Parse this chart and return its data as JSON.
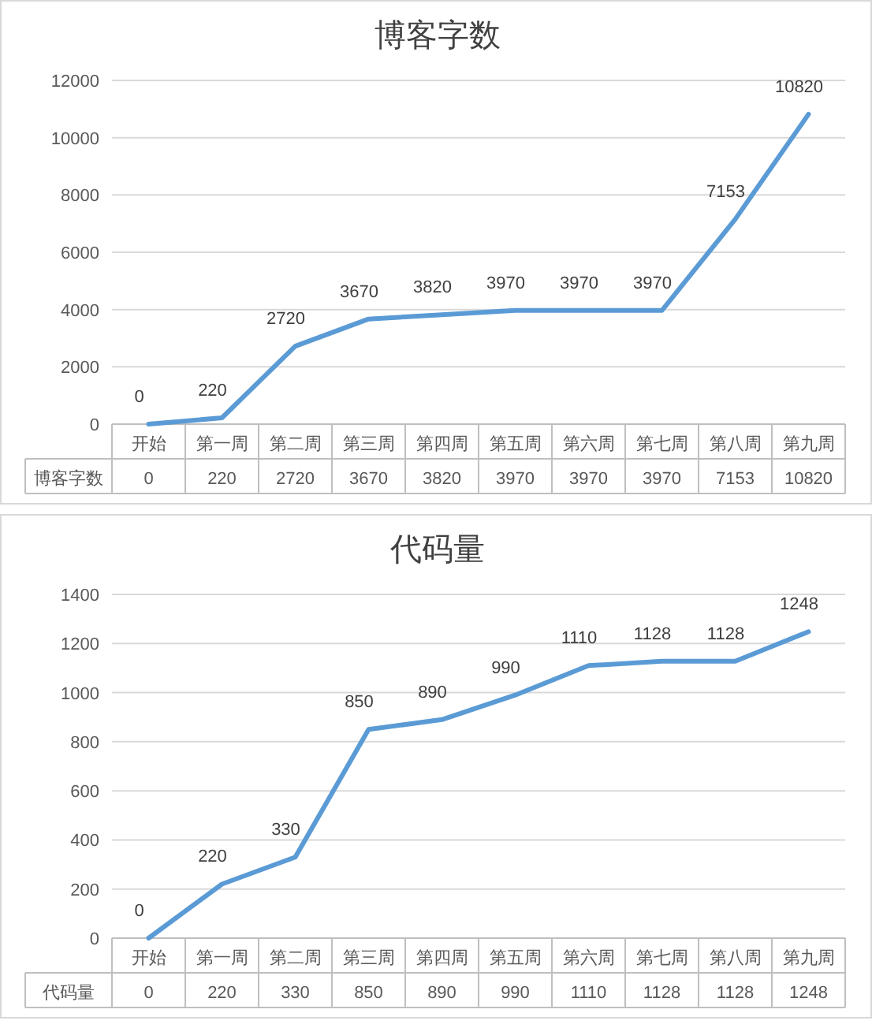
{
  "chart_data": [
    {
      "type": "line",
      "title": "博客字数",
      "categories": [
        "开始",
        "第一周",
        "第二周",
        "第三周",
        "第四周",
        "第五周",
        "第六周",
        "第七周",
        "第八周",
        "第九周"
      ],
      "series": [
        {
          "name": "博客字数",
          "color": "#5b9bd5",
          "values": [
            0,
            220,
            2720,
            3670,
            3820,
            3970,
            3970,
            3970,
            7153,
            10820
          ]
        }
      ],
      "ylim": [
        0,
        12000
      ],
      "yticks": [
        0,
        2000,
        4000,
        6000,
        8000,
        10000,
        12000
      ],
      "grid": "y",
      "data_labels": true,
      "annotations": [
        {
          "text": "0",
          "x": "开始",
          "y": 0
        },
        {
          "text": "220",
          "x": "第一周",
          "y": 220
        },
        {
          "text": "2720",
          "x": "第二周",
          "y": 2720
        },
        {
          "text": "3670",
          "x": "第三周",
          "y": 3670
        },
        {
          "text": "3820",
          "x": "第四周",
          "y": 3820
        },
        {
          "text": "3970",
          "x": "第五周",
          "y": 3970
        },
        {
          "text": "3970",
          "x": "第六周",
          "y": 3970
        },
        {
          "text": "3970",
          "x": "第七周",
          "y": 3970
        },
        {
          "text": "7153",
          "x": "第八周",
          "y": 7153
        },
        {
          "text": "10820",
          "x": "第九周",
          "y": 10820
        }
      ]
    },
    {
      "type": "line",
      "title": "代码量",
      "categories": [
        "开始",
        "第一周",
        "第二周",
        "第三周",
        "第四周",
        "第五周",
        "第六周",
        "第七周",
        "第八周",
        "第九周"
      ],
      "series": [
        {
          "name": "代码量",
          "color": "#5b9bd5",
          "values": [
            0,
            220,
            330,
            850,
            890,
            990,
            1110,
            1128,
            1128,
            1248
          ]
        }
      ],
      "ylim": [
        0,
        1400
      ],
      "yticks": [
        0,
        200,
        400,
        600,
        800,
        1000,
        1200,
        1400
      ],
      "grid": "y",
      "data_labels": true,
      "annotations": [
        {
          "text": "0",
          "x": "开始",
          "y": 0
        },
        {
          "text": "220",
          "x": "第一周",
          "y": 220
        },
        {
          "text": "330",
          "x": "第二周",
          "y": 330
        },
        {
          "text": "850",
          "x": "第三周",
          "y": 850
        },
        {
          "text": "890",
          "x": "第四周",
          "y": 890
        },
        {
          "text": "990",
          "x": "第五周",
          "y": 990
        },
        {
          "text": "1110",
          "x": "第六周",
          "y": 1110
        },
        {
          "text": "1128",
          "x": "第七周",
          "y": 1128
        },
        {
          "text": "1128",
          "x": "第八周",
          "y": 1128
        },
        {
          "text": "1248",
          "x": "第九周",
          "y": 1248
        }
      ]
    }
  ]
}
